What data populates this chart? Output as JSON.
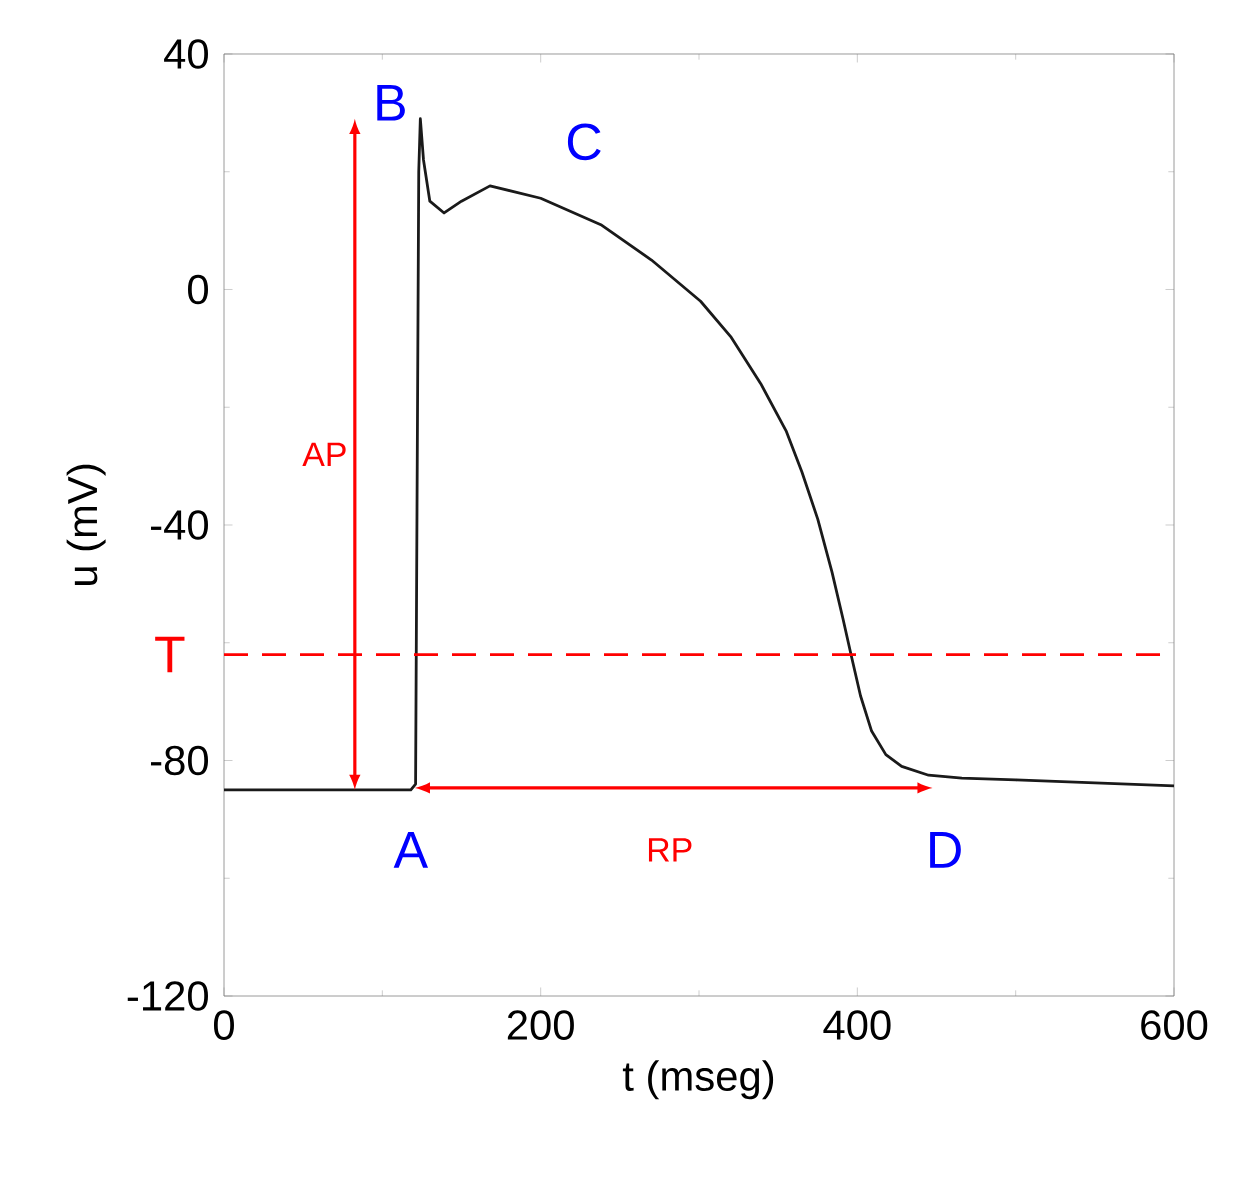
{
  "chart_data": {
    "type": "line",
    "xlabel": "t (mseg)",
    "ylabel": "u (mV)",
    "x": [
      0,
      118,
      121,
      123,
      124,
      126,
      130,
      139,
      150,
      168,
      200,
      238,
      270,
      301,
      320,
      339,
      355,
      365,
      375,
      384,
      391,
      396,
      402,
      409,
      418,
      428,
      445,
      466,
      500,
      550,
      600
    ],
    "series": [
      {
        "color": "#1a1a1a",
        "values": [
          -85,
          -85,
          -84,
          20,
          29,
          22,
          15,
          13,
          15,
          17.6,
          15.5,
          11,
          5,
          -2,
          -8,
          -16,
          -24,
          -31,
          -39,
          -48,
          -56,
          -62,
          -69,
          -75,
          -79,
          -81,
          -82.5,
          -83,
          -83.3,
          -83.8,
          -84.3
        ]
      }
    ],
    "xlim": [
      0,
      600
    ],
    "ylim": [
      -120,
      40
    ],
    "xticks": [
      0,
      200,
      400,
      600
    ],
    "yticks": [
      -120,
      -80,
      -40,
      0,
      40
    ],
    "ref_lines": [
      {
        "axis": "y",
        "value": -62,
        "label": "T",
        "color": "#ff0000",
        "line_style": "dashed"
      }
    ],
    "annotations": [
      "A",
      "B",
      "C",
      "D",
      "AP",
      "RP"
    ],
    "grid": false,
    "marker": "none",
    "line_style": "solid"
  }
}
